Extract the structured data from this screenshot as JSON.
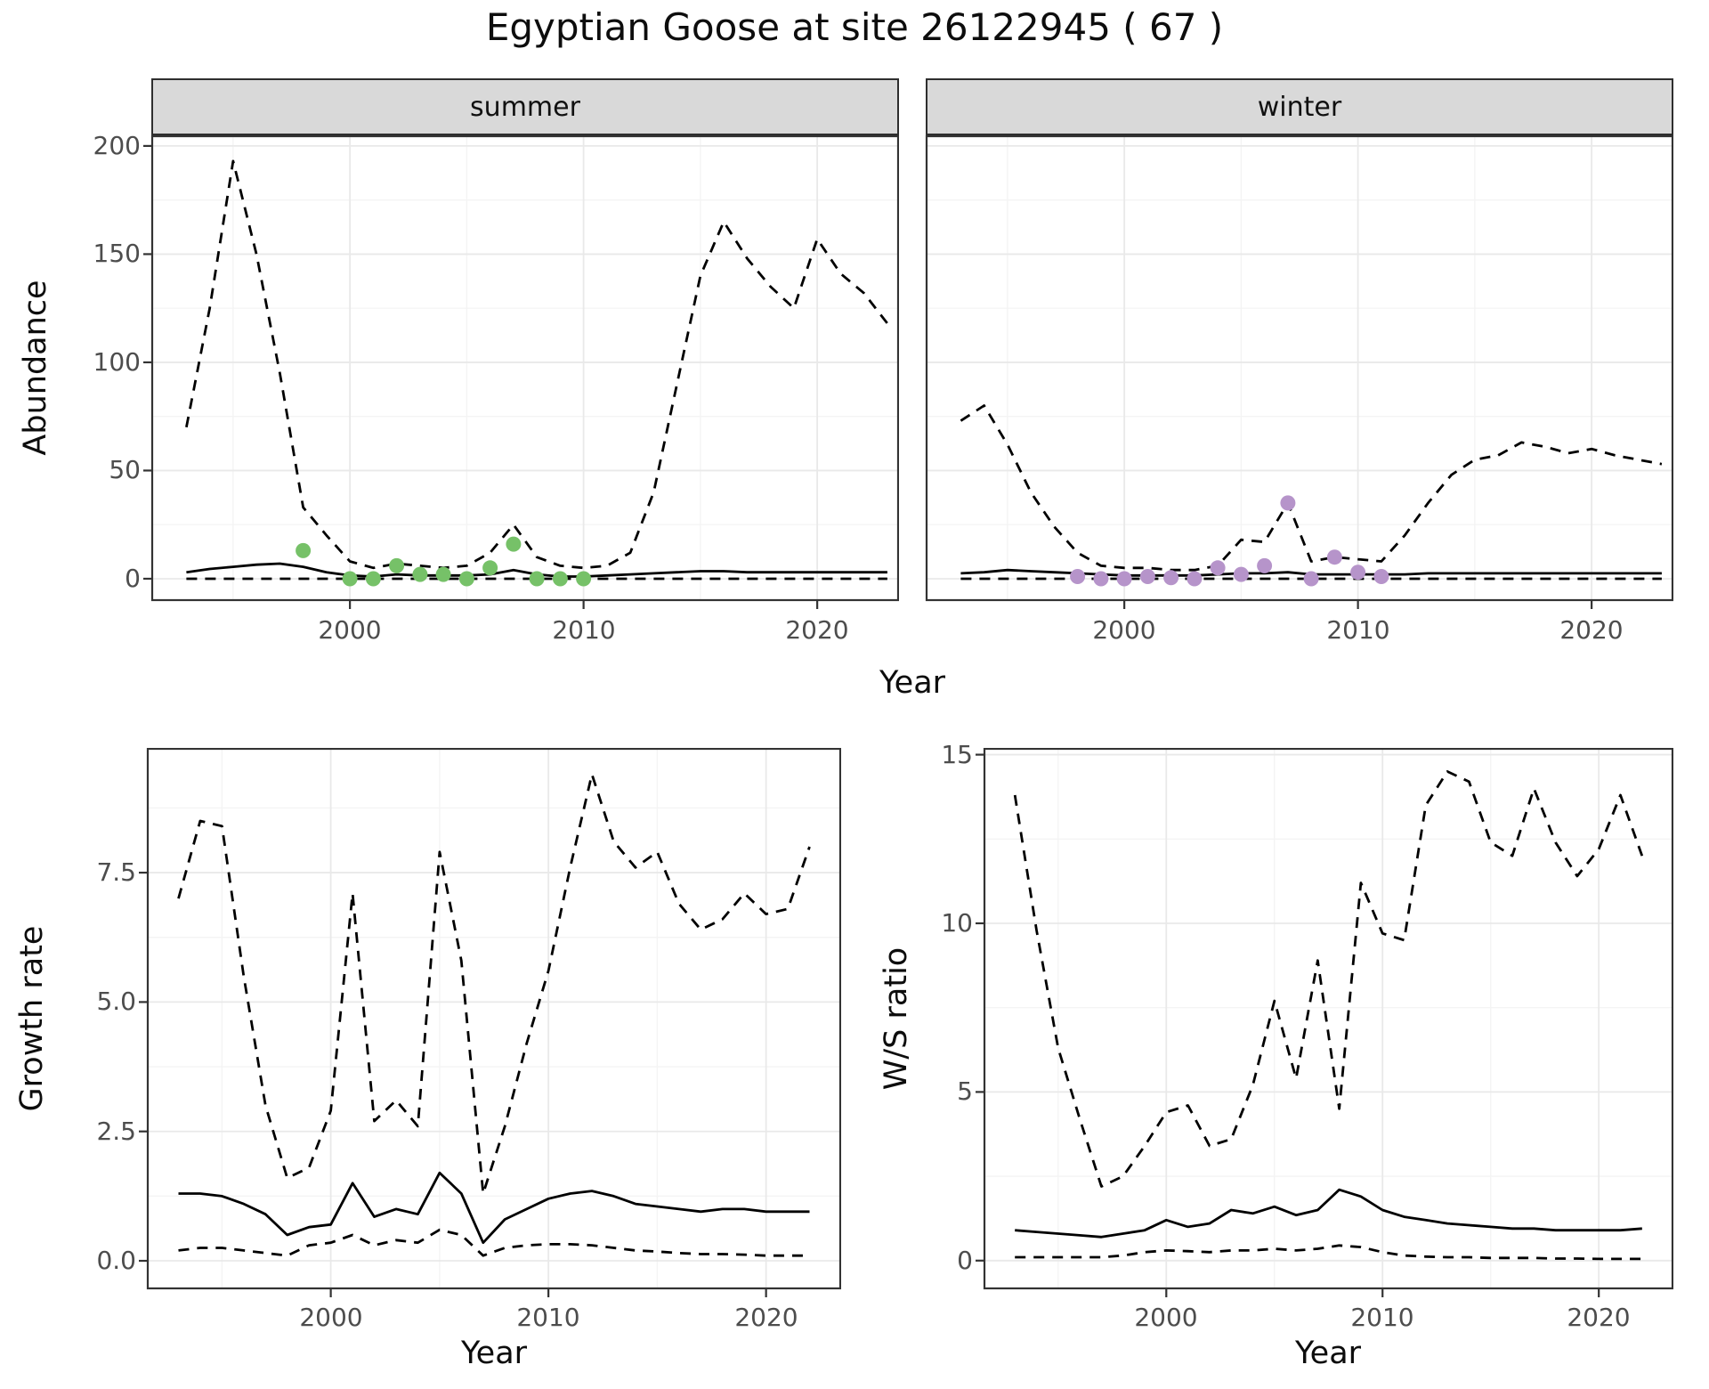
{
  "title": "Egyptian Goose at site 26122945 ( 67 )",
  "chart_data": [
    {
      "id": "abundance-summer",
      "type": "line",
      "facet": "summer",
      "xlabel": "Year",
      "ylabel": "Abundance",
      "xlim": [
        1991.5,
        2023.5
      ],
      "ylim": [
        -10.3,
        204.9
      ],
      "xticks": [
        2000,
        2010,
        2020
      ],
      "yticks": [
        0,
        50,
        100,
        150,
        200
      ],
      "xtick_labels": [
        "2000",
        "2010",
        "2020"
      ],
      "ytick_labels": [
        "0",
        "50",
        "100",
        "150",
        "200"
      ],
      "xminor": [
        1995,
        2005,
        2015
      ],
      "yminor": [
        25,
        75,
        125,
        175
      ],
      "show_yticks": true,
      "x": [
        1993,
        1994,
        1995,
        1996,
        1997,
        1998,
        1999,
        2000,
        2001,
        2002,
        2003,
        2004,
        2005,
        2006,
        2007,
        2008,
        2009,
        2010,
        2011,
        2012,
        2013,
        2014,
        2015,
        2016,
        2017,
        2018,
        2019,
        2020,
        2021,
        2022,
        2023
      ],
      "series": [
        {
          "name": "upper-ci",
          "style": "dashed",
          "y": [
            70,
            125,
            193,
            150,
            95,
            33,
            20,
            8,
            5,
            7,
            6,
            5,
            6,
            12,
            25,
            10,
            6,
            5,
            6,
            12,
            40,
            90,
            140,
            165,
            148,
            135,
            125,
            157,
            141,
            132,
            118
          ]
        },
        {
          "name": "median",
          "style": "solid",
          "y": [
            3,
            4.5,
            5.5,
            6.5,
            7,
            5.5,
            3,
            1.5,
            1,
            2,
            1.5,
            1.5,
            1.5,
            2,
            4,
            2,
            1,
            1,
            1.5,
            2,
            2.5,
            3,
            3.5,
            3.5,
            3,
            3,
            3,
            3,
            3,
            3,
            3
          ]
        },
        {
          "name": "lower-ci",
          "style": "dashed",
          "y": [
            0,
            0,
            0,
            0,
            0,
            0,
            0,
            0,
            0,
            0,
            0,
            0,
            0,
            0,
            0,
            0,
            0,
            0,
            0,
            0,
            0,
            0,
            0,
            0,
            0,
            0,
            0,
            0,
            0,
            0,
            0
          ]
        }
      ],
      "points": {
        "name": "observed-counts-summer",
        "color": "#76c168",
        "x": [
          1998,
          2000,
          2001,
          2002,
          2003,
          2004,
          2005,
          2006,
          2007,
          2008,
          2009,
          2010
        ],
        "y": [
          13,
          0,
          0,
          6,
          2,
          2,
          0,
          5,
          16,
          0,
          0,
          0
        ]
      }
    },
    {
      "id": "abundance-winter",
      "type": "line",
      "facet": "winter",
      "xlabel": "Year",
      "ylabel": "Abundance",
      "xlim": [
        1991.5,
        2023.5
      ],
      "ylim": [
        -10.3,
        204.9
      ],
      "xticks": [
        2000,
        2010,
        2020
      ],
      "yticks": [
        0,
        50,
        100,
        150,
        200
      ],
      "xtick_labels": [
        "2000",
        "2010",
        "2020"
      ],
      "xminor": [
        1995,
        2005,
        2015
      ],
      "yminor": [
        25,
        75,
        125,
        175
      ],
      "show_yticks": false,
      "x": [
        1993,
        1994,
        1995,
        1996,
        1997,
        1998,
        1999,
        2000,
        2001,
        2002,
        2003,
        2004,
        2005,
        2006,
        2007,
        2008,
        2009,
        2010,
        2011,
        2012,
        2013,
        2014,
        2015,
        2016,
        2017,
        2018,
        2019,
        2020,
        2021,
        2022,
        2023
      ],
      "series": [
        {
          "name": "upper-ci",
          "style": "dashed",
          "y": [
            73,
            80,
            62,
            40,
            24,
            12,
            6,
            5,
            5,
            4,
            4,
            6,
            18,
            17,
            35,
            8,
            10,
            9,
            8,
            20,
            35,
            48,
            55,
            57,
            63,
            61,
            58,
            60,
            57,
            55,
            53
          ]
        },
        {
          "name": "median",
          "style": "solid",
          "y": [
            2.5,
            3,
            4,
            3.5,
            3,
            2.5,
            2,
            1.5,
            1.5,
            1.5,
            1.5,
            2,
            2.5,
            2.5,
            3,
            2,
            2,
            2,
            2,
            2,
            2.5,
            2.5,
            2.5,
            2.5,
            2.5,
            2.5,
            2.5,
            2.5,
            2.5,
            2.5,
            2.5
          ]
        },
        {
          "name": "lower-ci",
          "style": "dashed",
          "y": [
            0,
            0,
            0,
            0,
            0,
            0,
            0,
            0,
            0,
            0,
            0,
            0,
            0,
            0,
            0,
            0,
            0,
            0,
            0,
            0,
            0,
            0,
            0,
            0,
            0,
            0,
            0,
            0,
            0,
            0,
            0
          ]
        }
      ],
      "points": {
        "name": "observed-counts-winter",
        "color": "#b694ca",
        "x": [
          1998,
          1999,
          2000,
          2001,
          2002,
          2003,
          2004,
          2005,
          2006,
          2007,
          2008,
          2009,
          2010,
          2011
        ],
        "y": [
          1,
          0,
          0,
          1,
          0.5,
          0,
          5,
          2,
          6,
          35,
          0,
          10,
          3,
          1
        ]
      }
    },
    {
      "id": "growth-rate",
      "type": "line",
      "xlabel": "Year",
      "ylabel": "Growth rate",
      "xlim": [
        1991.55,
        2023.45
      ],
      "ylim": [
        -0.55,
        9.91
      ],
      "xticks": [
        2000,
        2010,
        2020
      ],
      "yticks": [
        0,
        2.5,
        5,
        7.5
      ],
      "xtick_labels": [
        "2000",
        "2010",
        "2020"
      ],
      "ytick_labels": [
        "0.0",
        "2.5",
        "5.0",
        "7.5"
      ],
      "xminor": [
        1995,
        2005,
        2015
      ],
      "yminor": [
        1.25,
        3.75,
        6.25,
        8.75
      ],
      "show_yticks": true,
      "x": [
        1993,
        1994,
        1995,
        1996,
        1997,
        1998,
        1999,
        2000,
        2001,
        2002,
        2003,
        2004,
        2005,
        2006,
        2007,
        2008,
        2009,
        2010,
        2011,
        2012,
        2013,
        2014,
        2015,
        2016,
        2017,
        2018,
        2019,
        2020,
        2021,
        2022
      ],
      "series": [
        {
          "name": "upper-ci",
          "style": "dashed",
          "y": [
            7.0,
            8.5,
            8.4,
            5.5,
            3.0,
            1.6,
            1.8,
            2.9,
            7.1,
            2.7,
            3.1,
            2.6,
            7.9,
            5.8,
            1.3,
            2.6,
            4.2,
            5.6,
            7.6,
            9.4,
            8.1,
            7.6,
            7.9,
            6.9,
            6.4,
            6.6,
            7.1,
            6.7,
            6.8,
            8.0
          ]
        },
        {
          "name": "median",
          "style": "solid",
          "y": [
            1.3,
            1.3,
            1.25,
            1.1,
            0.9,
            0.5,
            0.65,
            0.7,
            1.5,
            0.85,
            1.0,
            0.9,
            1.7,
            1.3,
            0.35,
            0.8,
            1.0,
            1.2,
            1.3,
            1.35,
            1.25,
            1.1,
            1.05,
            1.0,
            0.95,
            1.0,
            1.0,
            0.95,
            0.95,
            0.95
          ]
        },
        {
          "name": "lower-ci",
          "style": "dashed",
          "y": [
            0.2,
            0.25,
            0.25,
            0.2,
            0.15,
            0.1,
            0.3,
            0.35,
            0.5,
            0.3,
            0.4,
            0.35,
            0.6,
            0.5,
            0.1,
            0.25,
            0.3,
            0.32,
            0.32,
            0.3,
            0.25,
            0.2,
            0.18,
            0.15,
            0.13,
            0.13,
            0.12,
            0.1,
            0.1,
            0.1
          ]
        }
      ]
    },
    {
      "id": "ws-ratio",
      "type": "line",
      "xlabel": "Year",
      "ylabel": "W/S ratio",
      "xlim": [
        1991.55,
        2023.45
      ],
      "ylim": [
        -0.85,
        15.2
      ],
      "xticks": [
        2000,
        2010,
        2020
      ],
      "yticks": [
        0,
        5,
        10,
        15
      ],
      "xtick_labels": [
        "2000",
        "2010",
        "2020"
      ],
      "ytick_labels": [
        "0",
        "5",
        "10",
        "15"
      ],
      "xminor": [
        1995,
        2005,
        2015
      ],
      "yminor": [
        2.5,
        7.5,
        12.5
      ],
      "show_yticks": true,
      "x": [
        1993,
        1994,
        1995,
        1996,
        1997,
        1998,
        1999,
        2000,
        2001,
        2002,
        2003,
        2004,
        2005,
        2006,
        2007,
        2008,
        2009,
        2010,
        2011,
        2012,
        2013,
        2014,
        2015,
        2016,
        2017,
        2018,
        2019,
        2020,
        2021,
        2022
      ],
      "series": [
        {
          "name": "upper-ci",
          "style": "dashed",
          "y": [
            13.8,
            9.8,
            6.3,
            4.2,
            2.2,
            2.5,
            3.4,
            4.4,
            4.6,
            3.4,
            3.6,
            5.2,
            7.7,
            5.4,
            8.9,
            4.5,
            11.2,
            9.7,
            9.5,
            13.5,
            14.5,
            14.2,
            12.4,
            12.0,
            14.0,
            12.4,
            11.4,
            12.2,
            13.8,
            12.0
          ]
        },
        {
          "name": "median",
          "style": "solid",
          "y": [
            0.9,
            0.85,
            0.8,
            0.75,
            0.7,
            0.8,
            0.9,
            1.2,
            1.0,
            1.1,
            1.5,
            1.4,
            1.6,
            1.35,
            1.5,
            2.1,
            1.9,
            1.5,
            1.3,
            1.2,
            1.1,
            1.05,
            1.0,
            0.95,
            0.95,
            0.9,
            0.9,
            0.9,
            0.9,
            0.95
          ]
        },
        {
          "name": "lower-ci",
          "style": "dashed",
          "y": [
            0.1,
            0.1,
            0.1,
            0.1,
            0.1,
            0.15,
            0.25,
            0.3,
            0.28,
            0.25,
            0.3,
            0.3,
            0.35,
            0.3,
            0.35,
            0.45,
            0.4,
            0.25,
            0.15,
            0.12,
            0.1,
            0.1,
            0.08,
            0.08,
            0.08,
            0.06,
            0.06,
            0.05,
            0.05,
            0.05
          ]
        }
      ]
    }
  ]
}
